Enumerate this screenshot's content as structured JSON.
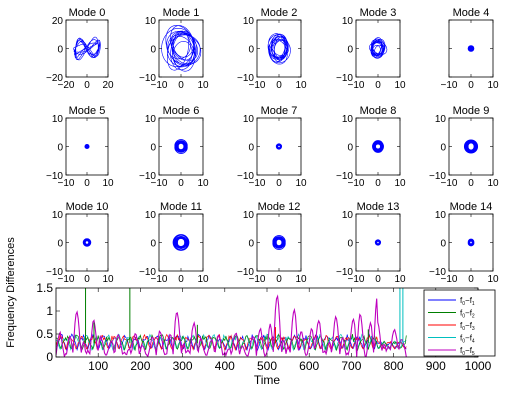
{
  "chart_data": {
    "type": "line",
    "modes": [
      {
        "title": "Mode 0",
        "lim": [
          -20,
          20
        ],
        "xticks": [
          "−20",
          "0",
          "20"
        ],
        "yticks": [
          "20",
          "0",
          "−20"
        ],
        "shape": "butterfly",
        "rx": 14,
        "ry": 10
      },
      {
        "title": "Mode 1",
        "lim": [
          -10,
          10
        ],
        "xticks": [
          "−10",
          "0",
          "10"
        ],
        "yticks": [
          "10",
          "0",
          "−10"
        ],
        "shape": "tangle",
        "rx": 8,
        "ry": 8
      },
      {
        "title": "Mode 2",
        "lim": [
          -10,
          10
        ],
        "xticks": [
          "−10",
          "0",
          "10"
        ],
        "yticks": [
          "10",
          "0",
          "−10"
        ],
        "shape": "tangle",
        "rx": 5,
        "ry": 5
      },
      {
        "title": "Mode 3",
        "lim": [
          -10,
          10
        ],
        "xticks": [
          "−10",
          "0",
          "10"
        ],
        "yticks": [
          "10",
          "0",
          "−10"
        ],
        "shape": "tangle",
        "rx": 3.5,
        "ry": 3.5
      },
      {
        "title": "Mode 4",
        "lim": [
          -10,
          10
        ],
        "xticks": [
          "−10",
          "0",
          "10"
        ],
        "yticks": [
          "",
          "",
          ""
        ],
        "shape": "dot",
        "rx": 1.5,
        "ry": 1.5
      },
      {
        "title": "Mode 5",
        "lim": [
          -10,
          10
        ],
        "xticks": [
          "−10",
          "0",
          "10"
        ],
        "yticks": [
          "10",
          "0",
          "−10"
        ],
        "shape": "dot",
        "rx": 1.2,
        "ry": 1.2
      },
      {
        "title": "Mode 6",
        "lim": [
          -10,
          10
        ],
        "xticks": [
          "−10",
          "0",
          "10"
        ],
        "yticks": [
          "10",
          "0",
          "−10"
        ],
        "shape": "ring",
        "rx": 2.8,
        "ry": 2.8
      },
      {
        "title": "Mode 7",
        "lim": [
          -10,
          10
        ],
        "xticks": [
          "−10",
          "0",
          "10"
        ],
        "yticks": [
          "10",
          "0",
          "−10"
        ],
        "shape": "ring",
        "rx": 1.2,
        "ry": 1.2
      },
      {
        "title": "Mode 8",
        "lim": [
          -10,
          10
        ],
        "xticks": [
          "−10",
          "0",
          "10"
        ],
        "yticks": [
          "10",
          "0",
          "−10"
        ],
        "shape": "ring",
        "rx": 2.5,
        "ry": 2.5
      },
      {
        "title": "Mode 9",
        "lim": [
          -10,
          10
        ],
        "xticks": [
          "−10",
          "0",
          "10"
        ],
        "yticks": [
          "10",
          "0",
          "−10"
        ],
        "shape": "ring",
        "rx": 3,
        "ry": 3
      },
      {
        "title": "Mode 10",
        "lim": [
          -10,
          10
        ],
        "xticks": [
          "−10",
          "0",
          "10"
        ],
        "yticks": [
          "10",
          "0",
          "−10"
        ],
        "shape": "ring",
        "rx": 1.8,
        "ry": 1.8
      },
      {
        "title": "Mode 11",
        "lim": [
          -10,
          10
        ],
        "xticks": [
          "−10",
          "0",
          "10"
        ],
        "yticks": [
          "10",
          "0",
          "−10"
        ],
        "shape": "ring",
        "rx": 3.6,
        "ry": 3.6
      },
      {
        "title": "Mode 12",
        "lim": [
          -10,
          10
        ],
        "xticks": [
          "−10",
          "0",
          "10"
        ],
        "yticks": [
          "10",
          "0",
          "−10"
        ],
        "shape": "ring",
        "rx": 2.8,
        "ry": 2.8
      },
      {
        "title": "Mode 13",
        "lim": [
          -10,
          10
        ],
        "xticks": [
          "−10",
          "0",
          "10"
        ],
        "yticks": [
          "10",
          "0",
          "−10"
        ],
        "shape": "ring",
        "rx": 1.2,
        "ry": 1.2
      },
      {
        "title": "Mode 14",
        "lim": [
          -10,
          10
        ],
        "xticks": [
          "−10",
          "0",
          "10"
        ],
        "yticks": [
          "10",
          "0",
          "−10"
        ],
        "shape": "ring",
        "rx": 1.3,
        "ry": 1.3
      }
    ],
    "freq": {
      "xlabel": "Time",
      "ylabel": "Frequency Differences",
      "xlim": [
        0,
        1000
      ],
      "ylim": [
        0,
        1.5
      ],
      "xticks": [
        100,
        200,
        300,
        400,
        500,
        600,
        700,
        800,
        900,
        1000
      ],
      "yticks": [
        0,
        0.5,
        1,
        1.5
      ],
      "ytick_labels": [
        "0",
        "0.5",
        "1",
        "1.5"
      ],
      "legend": [
        "f0−f1",
        "f0−f2",
        "f0−f3",
        "f0−f4",
        "f0−f5"
      ],
      "legend_main": [
        "f",
        "f",
        "f",
        "f",
        "f"
      ],
      "legend_sub0": [
        "0",
        "0",
        "0",
        "0",
        "0"
      ],
      "legend_sub1": [
        "1",
        "2",
        "3",
        "4",
        "5"
      ],
      "colors": [
        "#0000ff",
        "#007f00",
        "#ff0000",
        "#00bfbf",
        "#bf00bf"
      ],
      "spikes": [
        {
          "series": 1,
          "x": 70,
          "y": 1.5
        },
        {
          "series": 1,
          "x": 175,
          "y": 1.5
        },
        {
          "series": 1,
          "x": 90,
          "y": 0.75
        },
        {
          "series": 1,
          "x": 335,
          "y": 0.7
        },
        {
          "series": 2,
          "x": 520,
          "y": 0.65
        },
        {
          "series": 1,
          "x": 740,
          "y": 0.6
        },
        {
          "series": 3,
          "x": 815,
          "y": 1.5
        },
        {
          "series": 3,
          "x": 822,
          "y": 1.5
        }
      ]
    }
  }
}
